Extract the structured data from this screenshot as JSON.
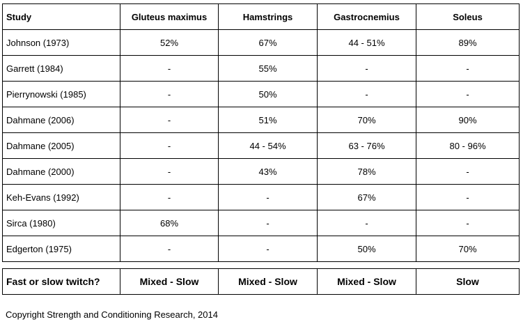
{
  "table": {
    "header": [
      "Study",
      "Gluteus maximus",
      "Hamstrings",
      "Gastrocnemius",
      "Soleus"
    ],
    "rows": [
      [
        "Johnson (1973)",
        "52%",
        "67%",
        "44 - 51%",
        "89%"
      ],
      [
        "Garrett (1984)",
        "-",
        "55%",
        "-",
        "-"
      ],
      [
        "Pierrynowski (1985)",
        "-",
        "50%",
        "-",
        "-"
      ],
      [
        "Dahmane (2006)",
        "-",
        "51%",
        "70%",
        "90%"
      ],
      [
        "Dahmane (2005)",
        "-",
        "44 - 54%",
        "63 - 76%",
        "80 - 96%"
      ],
      [
        "Dahmane (2000)",
        "-",
        "43%",
        "78%",
        "-"
      ],
      [
        "Keh-Evans (1992)",
        "-",
        "-",
        "67%",
        "-"
      ],
      [
        "Sirca (1980)",
        "68%",
        "-",
        "-",
        "-"
      ],
      [
        "Edgerton (1975)",
        "-",
        "-",
        "50%",
        "70%"
      ]
    ],
    "summary": [
      "Fast or slow twitch?",
      "Mixed - Slow",
      "Mixed - Slow",
      "Mixed - Slow",
      "Slow"
    ]
  },
  "footer": {
    "copyright": "Copyright Strength and Conditioning Research, 2014"
  }
}
